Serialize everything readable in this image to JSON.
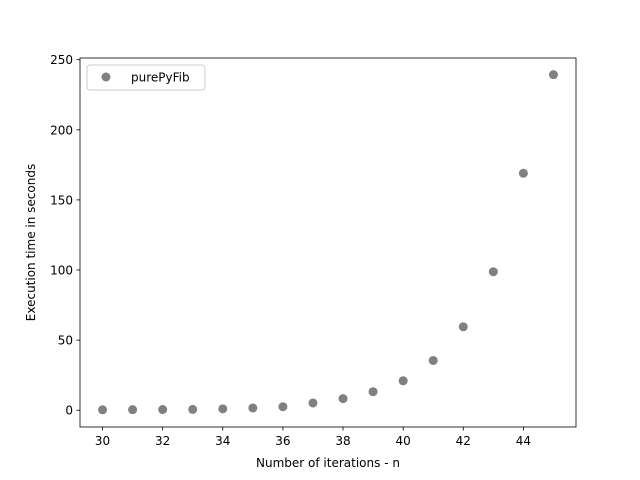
{
  "chart_data": {
    "type": "scatter",
    "xlabel": "Number of iterations - n",
    "ylabel": "Execution time in seconds",
    "xlim": [
      29.25,
      45.75
    ],
    "ylim": [
      -11.96,
      251.2
    ],
    "xticks": [
      30,
      32,
      34,
      36,
      38,
      40,
      42,
      44
    ],
    "yticks": [
      0,
      50,
      100,
      150,
      200,
      250
    ],
    "grid": false,
    "legend_position": "top-left",
    "series": [
      {
        "name": "purePyFib",
        "color": "#808080",
        "x": [
          30,
          31,
          32,
          33,
          34,
          35,
          36,
          37,
          38,
          39,
          40,
          41,
          42,
          43,
          44,
          45
        ],
        "y": [
          0.3,
          0.4,
          0.5,
          0.6,
          1.0,
          1.6,
          2.5,
          5.2,
          8.3,
          13.2,
          21.0,
          35.5,
          59.5,
          98.8,
          169.0,
          239.3
        ]
      }
    ]
  }
}
